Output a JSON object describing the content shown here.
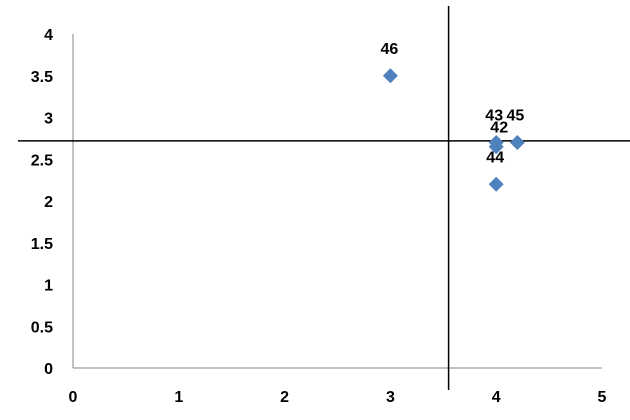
{
  "chart_data": {
    "type": "scatter",
    "title": "",
    "xlabel": "",
    "ylabel": "",
    "xlim": [
      0,
      5
    ],
    "ylim": [
      0,
      4
    ],
    "x_ticks": [
      "0",
      "1",
      "2",
      "3",
      "4",
      "5"
    ],
    "y_ticks": [
      "0",
      "0.5",
      "1",
      "1.5",
      "2",
      "2.5",
      "3",
      "3.5",
      "4"
    ],
    "grid": false,
    "legend": "none",
    "marker": "diamond",
    "marker_color": "#4F81BD",
    "points": [
      {
        "label": "46",
        "x": 3.0,
        "y": 3.5
      },
      {
        "label": "43",
        "x": 4.0,
        "y": 2.7
      },
      {
        "label": "42",
        "x": 4.0,
        "y": 2.65
      },
      {
        "label": "45",
        "x": 4.2,
        "y": 2.7
      },
      {
        "label": "44",
        "x": 4.0,
        "y": 2.2
      }
    ],
    "reference_lines": {
      "vertical_x": 3.55,
      "horizontal_y": 2.72
    }
  }
}
